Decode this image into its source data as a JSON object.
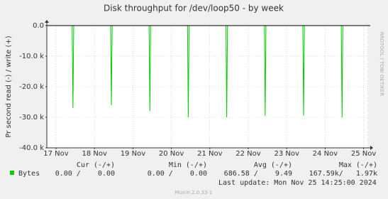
{
  "chart_data": {
    "type": "line",
    "title": "Disk throughput for /dev/loop50 - by week",
    "ylabel": "Pr second read (-) / write (+)",
    "watermark": "RRDTOOL / TOBI OETIKER",
    "xlim": [
      16.76,
      25.1
    ],
    "xticks": [
      {
        "value": 17,
        "label": "17 Nov"
      },
      {
        "value": 18,
        "label": "18 Nov"
      },
      {
        "value": 19,
        "label": "19 Nov"
      },
      {
        "value": 20,
        "label": "20 Nov"
      },
      {
        "value": 21,
        "label": "21 Nov"
      },
      {
        "value": 22,
        "label": "22 Nov"
      },
      {
        "value": 23,
        "label": "23 Nov"
      },
      {
        "value": 24,
        "label": "24 Nov"
      },
      {
        "value": 25,
        "label": "25 Nov"
      }
    ],
    "ylim": [
      -40000,
      0
    ],
    "yticks": [
      {
        "value": 0,
        "label": "0.0"
      },
      {
        "value": -10000,
        "label": "-10.0 k"
      },
      {
        "value": -20000,
        "label": "-20.0 k"
      },
      {
        "value": -30000,
        "label": "-30.0 k"
      },
      {
        "value": -40000,
        "label": "-40.0 k"
      }
    ],
    "grid": true,
    "series": [
      {
        "name": "Bytes",
        "color": "#00cc00",
        "x": [
          17.42,
          17.44,
          17.46,
          18.42,
          18.44,
          18.46,
          19.42,
          19.44,
          19.46,
          20.42,
          20.44,
          20.46,
          21.42,
          21.44,
          21.46,
          22.42,
          22.44,
          22.46,
          23.42,
          23.44,
          23.46,
          24.42,
          24.44,
          24.46
        ],
        "values": [
          0,
          -27000,
          0,
          0,
          -26000,
          0,
          0,
          -28000,
          0,
          0,
          -30000,
          0,
          0,
          -30000,
          0,
          0,
          -29500,
          0,
          0,
          -29500,
          0,
          0,
          -30000,
          0
        ]
      }
    ],
    "stats": {
      "headers": [
        "Cur (-/+)",
        "Min (-/+)",
        "Avg (-/+)",
        "Max (-/+)"
      ],
      "values": [
        "0.00 /    0.00",
        "0.00 /    0.00",
        "686.58 /    9.49",
        "167.59k/   1.97k"
      ]
    },
    "last_update": "Last update: Mon Nov 25 14:25:00 2024",
    "footer": "Munin 2.0.33-1"
  }
}
